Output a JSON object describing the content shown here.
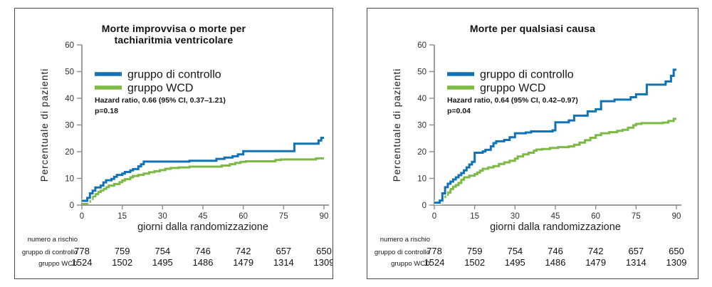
{
  "figure": {
    "description": "Due curve di incidenza cumulativa (stile Kaplan-Meier)"
  },
  "colors": {
    "control": "#1173b6",
    "wcd": "#7cba45",
    "axis": "#8c8c8c",
    "text": "#161616"
  },
  "chart_data": [
    {
      "type": "line",
      "variant": "step-cumulative-incidence",
      "title": "Morte improvvisa o morte per\ntachiaritmia ventricolare",
      "xlabel": "giorni dalla randomizzazione",
      "ylabel": "Percentuale di pazienti",
      "xlim": [
        0,
        90
      ],
      "ylim": [
        0,
        60
      ],
      "xticks": [
        0,
        15,
        30,
        45,
        60,
        75,
        90
      ],
      "yticks": [
        0,
        10,
        20,
        30,
        40,
        50,
        60
      ],
      "grid": false,
      "legend_position": "upper-left-inside",
      "legend": [
        {
          "label": "gruppo di controllo",
          "color": "#1173b6"
        },
        {
          "label": "gruppo WCD",
          "color": "#7cba45"
        }
      ],
      "annotation": "Hazard ratio, 0.66 (95% CI, 0.37–1.21)\np=0.18",
      "series": [
        {
          "name": "gruppo di controllo",
          "color": "#1173b6",
          "points": [
            [
              0,
              1.6
            ],
            [
              2,
              2.7
            ],
            [
              3,
              4.4
            ],
            [
              4,
              5.4
            ],
            [
              5,
              6.6
            ],
            [
              7,
              7.3
            ],
            [
              8,
              8.5
            ],
            [
              9,
              9.3
            ],
            [
              11,
              9.8
            ],
            [
              12,
              10.6
            ],
            [
              13,
              11.3
            ],
            [
              15,
              11.8
            ],
            [
              16,
              12.4
            ],
            [
              18,
              13.0
            ],
            [
              19,
              13.5
            ],
            [
              21,
              14.5
            ],
            [
              22,
              15.3
            ],
            [
              23,
              16.3
            ],
            [
              40,
              16.6
            ],
            [
              50,
              17.3
            ],
            [
              53,
              17.8
            ],
            [
              56,
              18.3
            ],
            [
              58,
              19.0
            ],
            [
              60,
              20.2
            ],
            [
              79,
              23.0
            ],
            [
              88,
              24.2
            ],
            [
              89,
              25.2
            ]
          ]
        },
        {
          "name": "gruppo WCD",
          "color": "#7cba45",
          "points": [
            [
              0,
              0.5
            ],
            [
              2,
              1.3
            ],
            [
              3,
              2.3
            ],
            [
              4,
              3.3
            ],
            [
              5,
              4.1
            ],
            [
              6,
              4.9
            ],
            [
              7,
              5.5
            ],
            [
              8,
              6.1
            ],
            [
              9,
              6.7
            ],
            [
              10,
              7.3
            ],
            [
              12,
              7.9
            ],
            [
              14,
              8.6
            ],
            [
              15,
              9.2
            ],
            [
              16,
              9.7
            ],
            [
              18,
              10.4
            ],
            [
              19,
              10.9
            ],
            [
              21,
              11.3
            ],
            [
              23,
              11.8
            ],
            [
              25,
              12.3
            ],
            [
              27,
              12.7
            ],
            [
              29,
              13.1
            ],
            [
              31,
              13.6
            ],
            [
              33,
              13.9
            ],
            [
              36,
              14.1
            ],
            [
              40,
              14.4
            ],
            [
              52,
              14.8
            ],
            [
              55,
              15.3
            ],
            [
              57,
              15.8
            ],
            [
              59,
              16.2
            ],
            [
              61,
              16.4
            ],
            [
              72,
              16.9
            ],
            [
              74,
              17.1
            ],
            [
              87,
              17.5
            ]
          ]
        }
      ],
      "risk_table": {
        "title": "numero a rischio",
        "days": [
          0,
          15,
          30,
          45,
          60,
          75,
          90
        ],
        "rows": [
          {
            "label": "gruppo di controllo",
            "values": [
              778,
              759,
              754,
              746,
              742,
              657,
              650
            ]
          },
          {
            "label": "gruppo WCD",
            "values": [
              1524,
              1502,
              1495,
              1486,
              1479,
              1314,
              1309
            ]
          }
        ]
      }
    },
    {
      "type": "line",
      "variant": "step-cumulative-incidence",
      "title": "Morte per qualsiasi causa",
      "xlabel": "giorni dalla randomizzazione",
      "ylabel": "Percentuale di pazienti",
      "xlim": [
        0,
        90
      ],
      "ylim": [
        0,
        60
      ],
      "xticks": [
        0,
        15,
        30,
        45,
        60,
        75,
        90
      ],
      "yticks": [
        0,
        10,
        20,
        30,
        40,
        50,
        60
      ],
      "grid": false,
      "legend_position": "upper-left-inside",
      "legend": [
        {
          "label": "gruppo di controllo",
          "color": "#1173b6"
        },
        {
          "label": "gruppo WCD",
          "color": "#7cba45"
        }
      ],
      "annotation": "Hazard ratio, 0.64 (95% CI, 0.42–0.97)\np=0.04",
      "series": [
        {
          "name": "gruppo di controllo",
          "color": "#1173b6",
          "points": [
            [
              0,
              0.9
            ],
            [
              2,
              1.7
            ],
            [
              3,
              4.4
            ],
            [
              4,
              6.7
            ],
            [
              5,
              8.0
            ],
            [
              6,
              8.8
            ],
            [
              7,
              9.6
            ],
            [
              8,
              10.4
            ],
            [
              9,
              11.2
            ],
            [
              10,
              12.0
            ],
            [
              11,
              13.0
            ],
            [
              12,
              14.1
            ],
            [
              13,
              15.2
            ],
            [
              14,
              16.2
            ],
            [
              15,
              19.6
            ],
            [
              18,
              20.1
            ],
            [
              19,
              20.7
            ],
            [
              21,
              22.0
            ],
            [
              22,
              23.2
            ],
            [
              23,
              23.9
            ],
            [
              26,
              24.4
            ],
            [
              28,
              25.4
            ],
            [
              30,
              26.9
            ],
            [
              34,
              27.2
            ],
            [
              36,
              27.6
            ],
            [
              44,
              28.0
            ],
            [
              45,
              31.0
            ],
            [
              50,
              31.7
            ],
            [
              52,
              33.5
            ],
            [
              57,
              35.1
            ],
            [
              60,
              35.9
            ],
            [
              62,
              38.9
            ],
            [
              67,
              39.5
            ],
            [
              73,
              40.4
            ],
            [
              75,
              41.5
            ],
            [
              79,
              45.1
            ],
            [
              86,
              46.3
            ],
            [
              88,
              48.4
            ],
            [
              89,
              50.7
            ]
          ]
        },
        {
          "name": "gruppo WCD",
          "color": "#7cba45",
          "points": [
            [
              0,
              0.5
            ],
            [
              2,
              1.1
            ],
            [
              3,
              3.0
            ],
            [
              4,
              3.9
            ],
            [
              5,
              4.7
            ],
            [
              6,
              6.0
            ],
            [
              7,
              6.9
            ],
            [
              8,
              7.5
            ],
            [
              9,
              8.3
            ],
            [
              10,
              9.5
            ],
            [
              11,
              10.4
            ],
            [
              13,
              11.0
            ],
            [
              15,
              11.6
            ],
            [
              16,
              12.2
            ],
            [
              17,
              12.9
            ],
            [
              18,
              13.6
            ],
            [
              20,
              14.1
            ],
            [
              22,
              14.6
            ],
            [
              24,
              15.4
            ],
            [
              26,
              16.0
            ],
            [
              28,
              16.6
            ],
            [
              30,
              17.4
            ],
            [
              31,
              18.2
            ],
            [
              33,
              19.0
            ],
            [
              35,
              19.6
            ],
            [
              37,
              20.4
            ],
            [
              38,
              20.8
            ],
            [
              40,
              21.0
            ],
            [
              43,
              21.4
            ],
            [
              46,
              21.7
            ],
            [
              50,
              22.0
            ],
            [
              52,
              22.6
            ],
            [
              54,
              23.4
            ],
            [
              56,
              24.3
            ],
            [
              58,
              25.2
            ],
            [
              60,
              26.2
            ],
            [
              62,
              26.9
            ],
            [
              65,
              27.3
            ],
            [
              68,
              27.8
            ],
            [
              70,
              28.2
            ],
            [
              72,
              29.0
            ],
            [
              74,
              29.9
            ],
            [
              75,
              30.4
            ],
            [
              77,
              30.7
            ],
            [
              85,
              30.9
            ],
            [
              87,
              31.5
            ],
            [
              89,
              32.3
            ]
          ]
        }
      ],
      "risk_table": {
        "title": "numero a rischio",
        "days": [
          0,
          15,
          30,
          45,
          60,
          75,
          90
        ],
        "rows": [
          {
            "label": "gruppo di controllo",
            "values": [
              778,
              759,
              754,
              746,
              742,
              657,
              650
            ]
          },
          {
            "label": "gruppo WCD",
            "values": [
              1524,
              1502,
              1495,
              1486,
              1479,
              1314,
              1309
            ]
          }
        ]
      }
    }
  ]
}
